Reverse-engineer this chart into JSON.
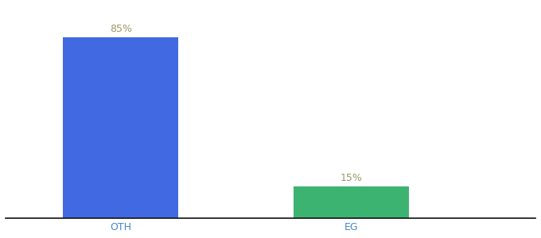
{
  "categories": [
    "OTH",
    "EG"
  ],
  "values": [
    85,
    15
  ],
  "bar_colors": [
    "#4169E1",
    "#3CB371"
  ],
  "label_color": "#999966",
  "value_labels": [
    "85%",
    "15%"
  ],
  "ylim": [
    0,
    100
  ],
  "background_color": "#ffffff",
  "bar_width": 0.5,
  "label_fontsize": 9,
  "tick_fontsize": 9,
  "x_positions": [
    1,
    2
  ],
  "xlim": [
    0.5,
    2.8
  ]
}
